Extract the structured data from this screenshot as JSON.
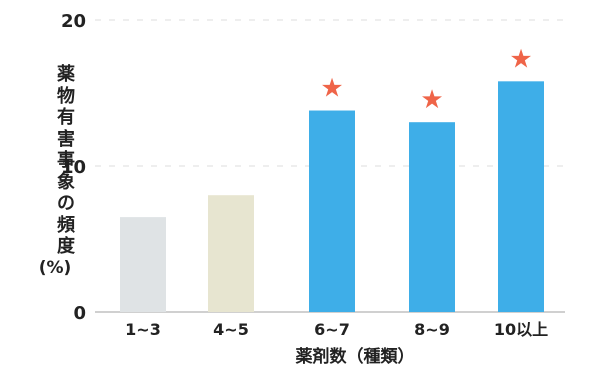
{
  "chart_data": {
    "type": "bar",
    "categories": [
      "1~3",
      "4~5",
      "6~7",
      "8~9",
      "10以上"
    ],
    "values": [
      6.5,
      8.0,
      13.8,
      13.0,
      15.8
    ],
    "significant": [
      false,
      false,
      true,
      true,
      true
    ],
    "significance_marker": "★",
    "title": "",
    "xlabel": "薬剤数（種類）",
    "ylabel": "薬物有害事象の頻度",
    "ylabel_unit": "(%)",
    "ylim": [
      0,
      20
    ],
    "yticks": [
      "0",
      "10",
      "20"
    ],
    "grid": true,
    "bar_styles": [
      "faded-gray",
      "faded-beige",
      "solid",
      "solid",
      "solid"
    ],
    "colors": {
      "bar": "#3eaee8",
      "bar_faded_1": "#dfe3e5",
      "bar_faded_2": "#e7e5d0",
      "star": "#ef6448",
      "axis": "#d0d0d0",
      "grid": "#dcdcdc",
      "text": "#222222"
    }
  }
}
